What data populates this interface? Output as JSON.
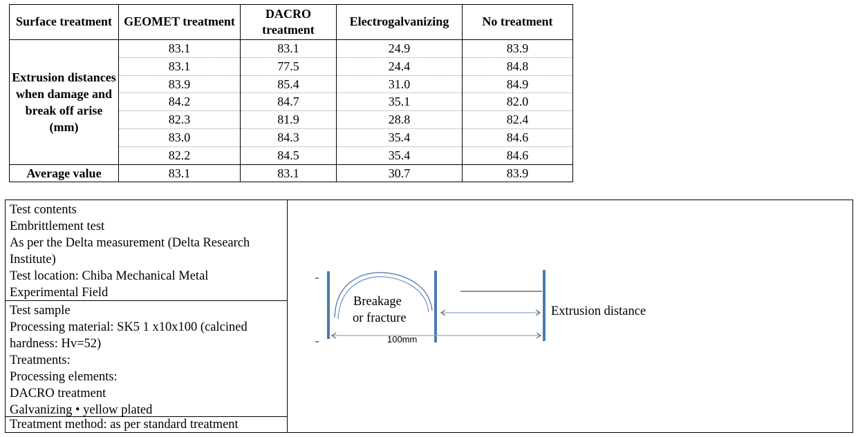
{
  "results_table": {
    "headers": [
      "Surface treatment",
      "GEOMET treatment",
      "DACRO treatment",
      "Electrogalvanizing",
      "No treatment"
    ],
    "row_header": "Extrusion distances when damage and break off arise (mm)",
    "rows": [
      [
        "83.1",
        "83.1",
        "24.9",
        "83.9"
      ],
      [
        "83.1",
        "77.5",
        "24.4",
        "84.8"
      ],
      [
        "83.9",
        "85.4",
        "31.0",
        "84.9"
      ],
      [
        "84.2",
        "84.7",
        "35.1",
        "82.0"
      ],
      [
        "82.3",
        "81.9",
        "28.8",
        "82.4"
      ],
      [
        "83.0",
        "84.3",
        "35.4",
        "84.6"
      ],
      [
        "82.2",
        "84.5",
        "35.4",
        "84.6"
      ]
    ],
    "average_label": "Average value",
    "averages": [
      "83.1",
      "83.1",
      "30.7",
      "83.9"
    ]
  },
  "info": {
    "contents": [
      "Test contents",
      "Embrittlement test",
      "As per the Delta measurement (Delta Research",
      "Institute)",
      "Test location: Chiba Mechanical Metal",
      "Experimental Field"
    ],
    "sample": [
      "Test sample",
      "Processing material:  SK5 1 x10x100 (calcined",
      "hardness: Hv=52)",
      "Treatments:",
      "Processing elements:",
      "DACRO treatment",
      "Galvanizing • yellow plated"
    ],
    "method": "Treatment method: as per standard treatment"
  },
  "diagram": {
    "breakage_line1": "Breakage",
    "breakage_line2": "or fracture",
    "span_label": "100mm",
    "extrusion_label": "Extrusion distance",
    "stroke_color": "#5b87b3",
    "post_color": "#4a7cae"
  }
}
